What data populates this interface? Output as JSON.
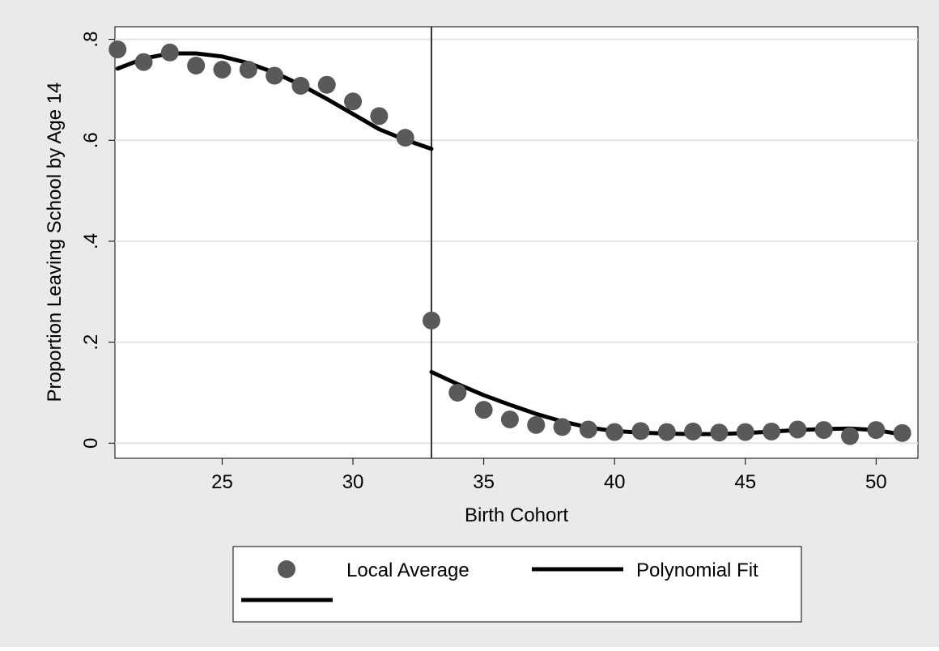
{
  "chart_data": {
    "type": "scatter",
    "title": "",
    "xlabel": "Birth Cohort",
    "ylabel": "Proportion Leaving School by Age 14",
    "xlim": [
      20.9,
      51.6
    ],
    "ylim": [
      -0.03,
      0.825
    ],
    "x_ticks": [
      25,
      30,
      35,
      40,
      45,
      50
    ],
    "x_tick_labels": [
      "25",
      "30",
      "35",
      "40",
      "45",
      "50"
    ],
    "y_ticks": [
      0,
      0.2,
      0.4,
      0.6,
      0.8
    ],
    "y_tick_labels": [
      "0",
      ".2",
      ".4",
      ".6",
      ".8"
    ],
    "grid": true,
    "cutoff_x": 33,
    "legend": {
      "placement": "bottom",
      "entries": [
        {
          "label": "Local Average",
          "marker": "circle"
        },
        {
          "label": "Polynomial Fit",
          "marker": "line"
        },
        {
          "label": "",
          "marker": "line"
        }
      ]
    },
    "colors": {
      "outer_background": "#eaeaea",
      "plot_background": "#ffffff",
      "gridline": "#e3e3e3",
      "marker": "#595959",
      "fit_line": "#000000",
      "cutoff_line": "#333333"
    },
    "series": [
      {
        "name": "Local Average",
        "kind": "scatter",
        "x": [
          21,
          22,
          23,
          24,
          25,
          26,
          27,
          28,
          29,
          30,
          31,
          32,
          33,
          34,
          35,
          36,
          37,
          38,
          39,
          40,
          41,
          42,
          43,
          44,
          45,
          46,
          47,
          48,
          49,
          50,
          51
        ],
        "y": [
          0.78,
          0.755,
          0.774,
          0.748,
          0.74,
          0.74,
          0.728,
          0.708,
          0.71,
          0.677,
          0.648,
          0.605,
          0.243,
          0.1,
          0.066,
          0.047,
          0.036,
          0.032,
          0.027,
          0.022,
          0.024,
          0.022,
          0.023,
          0.021,
          0.022,
          0.023,
          0.027,
          0.026,
          0.014,
          0.026,
          0.02
        ]
      },
      {
        "name": "Polynomial Fit",
        "kind": "line",
        "x": [
          21,
          22,
          23,
          24,
          25,
          26,
          27,
          28,
          29,
          30,
          31,
          32,
          33
        ],
        "y": [
          0.742,
          0.762,
          0.772,
          0.772,
          0.766,
          0.753,
          0.734,
          0.71,
          0.682,
          0.652,
          0.622,
          0.601,
          0.583
        ]
      },
      {
        "name": "",
        "kind": "line",
        "x": [
          33,
          34,
          35,
          36,
          37,
          38,
          39,
          40,
          41,
          42,
          43,
          44,
          45,
          46,
          47,
          48,
          49,
          50,
          51
        ],
        "y": [
          0.141,
          0.117,
          0.095,
          0.076,
          0.058,
          0.043,
          0.031,
          0.024,
          0.021,
          0.019,
          0.018,
          0.018,
          0.02,
          0.023,
          0.026,
          0.028,
          0.029,
          0.026,
          0.017
        ]
      }
    ]
  }
}
